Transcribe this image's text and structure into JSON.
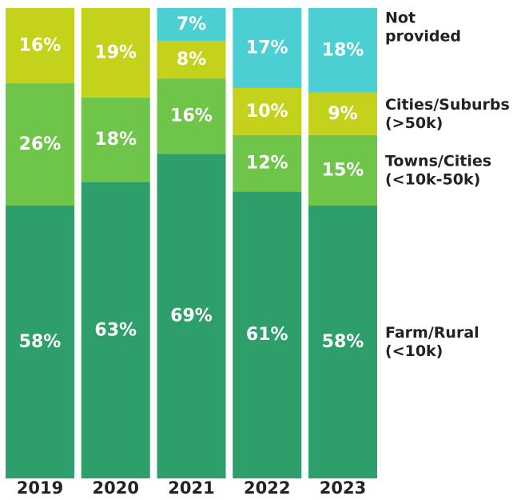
{
  "chart_data": {
    "type": "bar",
    "stacked": true,
    "percent": true,
    "categories": [
      "2019",
      "2020",
      "2021",
      "2022",
      "2023"
    ],
    "series": [
      {
        "key": "farm",
        "name_lines": [
          "Farm/Rural",
          "(<10k)"
        ],
        "color": "#2e9e6b",
        "values": [
          58,
          63,
          69,
          61,
          58
        ],
        "labels": [
          "58%",
          "63%",
          "69%",
          "61%",
          "58%"
        ]
      },
      {
        "key": "towns",
        "name_lines": [
          "Towns/Cities",
          "(<10k-50k)"
        ],
        "color": "#6ec54a",
        "values": [
          26,
          18,
          16,
          12,
          15
        ],
        "labels": [
          "26%",
          "18%",
          "16%",
          "12%",
          "15%"
        ]
      },
      {
        "key": "cities",
        "name_lines": [
          "Cities/Suburbs",
          "(>50k)"
        ],
        "color": "#c4d21c",
        "values": [
          16,
          19,
          8,
          10,
          9
        ],
        "labels": [
          "16%",
          "19%",
          "8%",
          "10%",
          "9%"
        ]
      },
      {
        "key": "notprovided",
        "name_lines": [
          "Not",
          "provided"
        ],
        "color": "#4ccfd3",
        "values": [
          0,
          0,
          7,
          17,
          18
        ],
        "labels": [
          "",
          "",
          "7%",
          "17%",
          "18%"
        ]
      }
    ],
    "ylim": [
      0,
      100
    ],
    "grid": false,
    "legend": "right"
  }
}
